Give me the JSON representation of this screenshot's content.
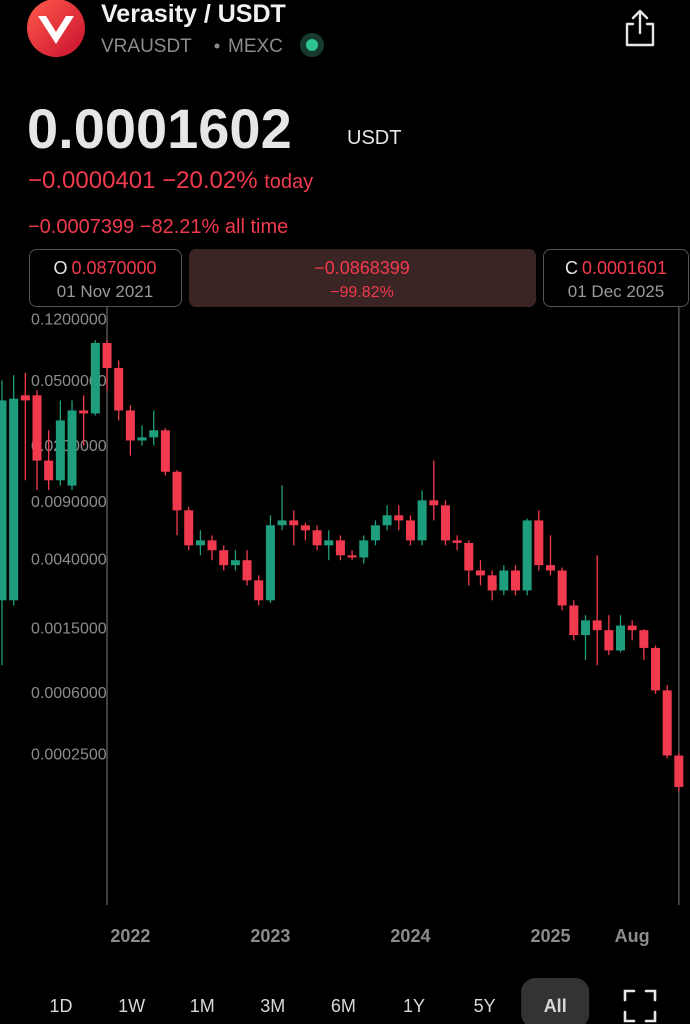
{
  "header": {
    "title": "Verasity / USDT",
    "symbol": "VRAUSDT",
    "exchange": "MEXC"
  },
  "price": {
    "value": "0.0001602",
    "unit": "USDT",
    "change_today": "−0.0000401",
    "change_today_pct": "−20.02%",
    "today_label": "today",
    "change_all": "−0.0007399",
    "change_all_pct": "−82.21%",
    "all_label": "all time"
  },
  "range": {
    "open_label": "O",
    "open_value": "0.0870000",
    "open_date": "01 Nov 2021",
    "change": "−0.0868399",
    "change_pct": "−99.82%",
    "close_label": "C",
    "close_value": "0.0001601",
    "close_date": "01 Dec 2025"
  },
  "timeframes": {
    "items": [
      "1D",
      "1W",
      "1M",
      "3M",
      "6M",
      "1Y",
      "5Y",
      "All"
    ],
    "selected": "All"
  },
  "chart_data": {
    "type": "candlestick",
    "categories": [
      null,
      null,
      null,
      null,
      null,
      null,
      null,
      null,
      null,
      null,
      null,
      "2022",
      null,
      null,
      null,
      null,
      null,
      null,
      null,
      null,
      null,
      null,
      null,
      "2023",
      null,
      null,
      null,
      null,
      null,
      null,
      null,
      null,
      null,
      null,
      null,
      "2024",
      null,
      null,
      null,
      null,
      null,
      null,
      null,
      null,
      null,
      null,
      null,
      "2025",
      null,
      null,
      null,
      null,
      null,
      null,
      "Aug",
      null,
      null,
      null,
      null
    ],
    "open": [
      0.00226,
      0.00226,
      0.0414,
      0.0414,
      0.0164,
      0.0124,
      0.0115,
      0.0334,
      0.032,
      0.087,
      0.061,
      0.0334,
      0.0218,
      0.0228,
      0.0252,
      0.014,
      0.0081,
      0.00493,
      0.00529,
      0.0046,
      0.00372,
      0.00399,
      0.003,
      0.00226,
      0.00655,
      0.00702,
      0.00655,
      0.0061,
      0.00493,
      0.00529,
      0.00428,
      0.00415,
      0.00529,
      0.00655,
      0.00755,
      0.00702,
      0.00529,
      0.00933,
      0.0087,
      0.00529,
      0.0051,
      0.00345,
      0.00322,
      0.0026,
      0.00345,
      0.0026,
      0.00702,
      0.00372,
      0.00345,
      0.0021,
      0.00138,
      0.0017,
      0.00148,
      0.00111,
      0.00158,
      0.00148,
      0.00115,
      0.00063,
      0.00025
    ],
    "high": [
      0.0512,
      0.055,
      0.057,
      0.0444,
      0.0252,
      0.0385,
      0.0385,
      0.0414,
      0.0904,
      0.0904,
      0.0679,
      0.0359,
      0.027,
      0.0334,
      0.026,
      0.0143,
      0.0085,
      0.0061,
      0.00568,
      0.00493,
      0.0046,
      0.0046,
      0.00322,
      0.00755,
      0.01154,
      0.0081,
      0.0068,
      0.00655,
      0.0061,
      0.00568,
      0.0046,
      0.00568,
      0.00702,
      0.0087,
      0.0087,
      0.00755,
      0.01075,
      0.0164,
      0.00933,
      0.00568,
      0.00529,
      0.00399,
      0.00345,
      0.00372,
      0.00372,
      0.0072,
      0.0081,
      0.00568,
      0.0036,
      0.00226,
      0.00183,
      0.00428,
      0.00183,
      0.00183,
      0.0017,
      0.0015,
      0.00119,
      0.00068,
      0.00026
    ],
    "low": [
      0.0009,
      0.0021,
      0.0124,
      0.0108,
      0.0108,
      0.0115,
      0.0108,
      0.0203,
      0.0311,
      0.0444,
      0.029,
      0.0176,
      0.0203,
      0.0203,
      0.0133,
      0.00568,
      0.0046,
      0.00428,
      0.00399,
      0.00345,
      0.00345,
      0.00279,
      0.0021,
      0.00218,
      0.0061,
      0.00493,
      0.00529,
      0.0046,
      0.00399,
      0.00399,
      0.00399,
      0.0038,
      0.00493,
      0.0061,
      0.0061,
      0.00493,
      0.00493,
      0.00702,
      0.00493,
      0.0046,
      0.00279,
      0.00279,
      0.00226,
      0.00243,
      0.00243,
      0.00243,
      0.00345,
      0.00322,
      0.00196,
      0.00128,
      0.00097,
      0.0009,
      0.00104,
      0.00108,
      0.00128,
      0.00097,
      0.0006,
      0.00024,
      0.00015
    ],
    "close": [
      0.0385,
      0.0395,
      0.0385,
      0.0164,
      0.0124,
      0.029,
      0.0334,
      0.032,
      0.087,
      0.061,
      0.0334,
      0.0218,
      0.0228,
      0.0252,
      0.014,
      0.0081,
      0.00493,
      0.00529,
      0.0046,
      0.00372,
      0.00399,
      0.003,
      0.00226,
      0.00655,
      0.00702,
      0.00655,
      0.0061,
      0.00493,
      0.00529,
      0.00428,
      0.00415,
      0.00529,
      0.00655,
      0.00755,
      0.00702,
      0.00529,
      0.00933,
      0.0087,
      0.00529,
      0.0051,
      0.00345,
      0.00322,
      0.0026,
      0.00345,
      0.0026,
      0.00702,
      0.00372,
      0.00345,
      0.0021,
      0.00138,
      0.0017,
      0.00148,
      0.00111,
      0.00158,
      0.00148,
      0.00115,
      0.00063,
      0.00025,
      0.0001601
    ],
    "up_color": "#1f9e7d",
    "down_color": "#f23a4e",
    "ylim": [
      3e-05,
      0.16
    ],
    "log_scale": true,
    "grid": false,
    "yticks": [
      {
        "value": 0.12,
        "label": "0.1200000"
      },
      {
        "value": 0.05,
        "label": "0.0500000"
      },
      {
        "value": 0.02,
        "label": "0.0200000"
      },
      {
        "value": 0.009,
        "label": "0.0090000"
      },
      {
        "value": 0.004,
        "label": "0.0040000"
      },
      {
        "value": 0.0015,
        "label": "0.0015000"
      },
      {
        "value": 0.0006,
        "label": "0.0006000"
      },
      {
        "value": 0.00025,
        "label": "0.0002500"
      }
    ]
  }
}
